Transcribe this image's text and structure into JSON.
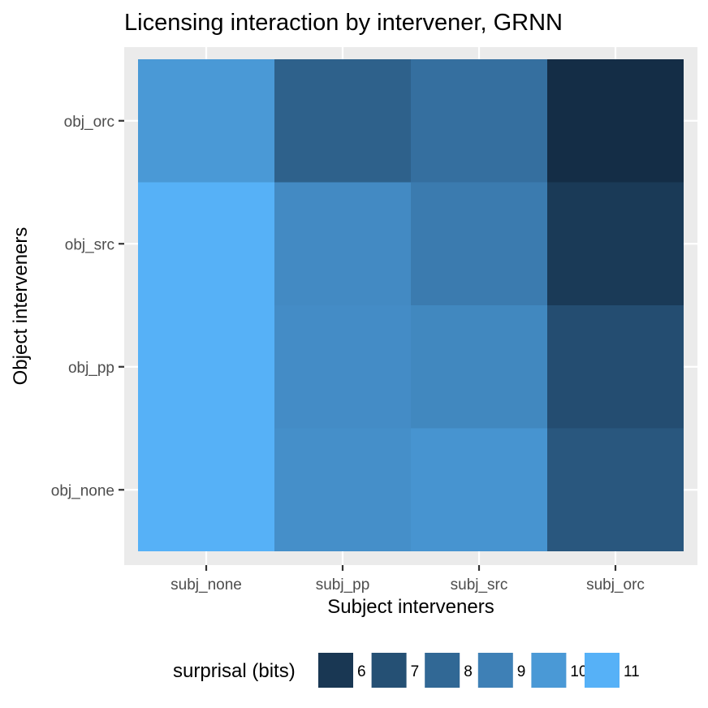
{
  "chart_data": {
    "type": "heatmap",
    "title": "Licensing interaction by intervener, GRNN",
    "xlabel": "Subject interveners",
    "ylabel": "Object interveners",
    "x_categories": [
      "subj_none",
      "subj_pp",
      "subj_src",
      "subj_orc"
    ],
    "y_categories": [
      "obj_none",
      "obj_pp",
      "obj_src",
      "obj_orc"
    ],
    "values": [
      [
        11.0,
        9.6,
        9.8,
        7.3
      ],
      [
        11.0,
        9.5,
        9.3,
        6.9
      ],
      [
        11.0,
        9.4,
        8.8,
        6.1
      ],
      [
        10.0,
        7.7,
        8.3,
        5.6
      ]
    ],
    "color_scale": {
      "low": "#132B43",
      "high": "#56B1F7",
      "min": 5.5,
      "max": 11.0
    },
    "legend": {
      "title": "surprisal (bits)",
      "position": "bottom",
      "entries": [
        {
          "label": "6",
          "value": 6
        },
        {
          "label": "7",
          "value": 7
        },
        {
          "label": "8",
          "value": 8
        },
        {
          "label": "9",
          "value": 9
        },
        {
          "label": "10",
          "value": 10
        },
        {
          "label": "11",
          "value": 11
        }
      ]
    },
    "grid": true,
    "panel_background": "#EBEBEB",
    "grid_color": "#FFFFFF"
  }
}
